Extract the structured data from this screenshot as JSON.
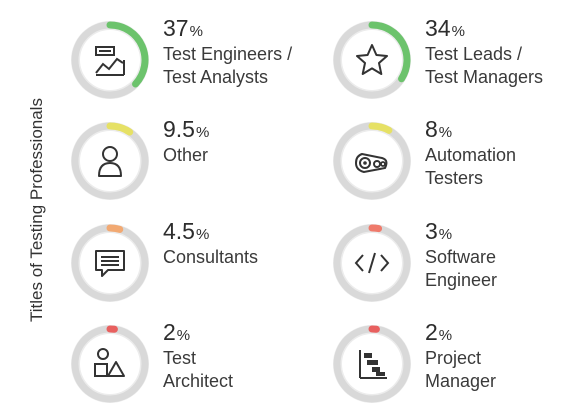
{
  "chart_data": {
    "type": "radial-progress",
    "title": "Titles of Testing Professionals",
    "unit_symbol": "%",
    "items": [
      {
        "value": "37",
        "percent": 37,
        "label_lines": [
          "Test Engineers /",
          "Test Analysts"
        ],
        "color": "#6cc36c",
        "icon": "chart-icon"
      },
      {
        "value": "34",
        "percent": 34,
        "label_lines": [
          "Test Leads /",
          "Test Managers"
        ],
        "color": "#6cc36c",
        "icon": "star-icon"
      },
      {
        "value": "9.5",
        "percent": 9.5,
        "label_lines": [
          "Other"
        ],
        "color": "#e6e165",
        "icon": "person-icon"
      },
      {
        "value": "8",
        "percent": 8,
        "label_lines": [
          "Automation",
          "Testers"
        ],
        "color": "#e6e165",
        "icon": "gears-icon"
      },
      {
        "value": "4.5",
        "percent": 4.5,
        "label_lines": [
          "Consultants"
        ],
        "color": "#f2a972",
        "icon": "speech-bubble-icon"
      },
      {
        "value": "3",
        "percent": 3,
        "label_lines": [
          "Software",
          "Engineer"
        ],
        "color": "#ef7a6b",
        "icon": "code-icon"
      },
      {
        "value": "2",
        "percent": 2,
        "label_lines": [
          "Test",
          "Architect"
        ],
        "color": "#e8605f",
        "icon": "shapes-icon"
      },
      {
        "value": "2",
        "percent": 2,
        "label_lines": [
          "Project",
          "Manager"
        ],
        "color": "#e8605f",
        "icon": "gantt-icon"
      }
    ]
  }
}
